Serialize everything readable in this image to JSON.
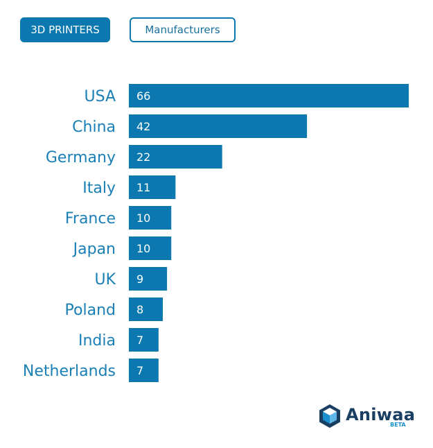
{
  "header": {
    "tag_primary": "3D PRINTERS",
    "tag_secondary": "Manufacturers"
  },
  "chart_data": {
    "type": "bar",
    "orientation": "horizontal",
    "title": "",
    "xlabel": "",
    "ylabel": "",
    "categories": [
      "USA",
      "China",
      "Germany",
      "Italy",
      "France",
      "Japan",
      "UK",
      "Poland",
      "India",
      "Netherlands"
    ],
    "values": [
      66,
      42,
      22,
      11,
      10,
      10,
      9,
      8,
      7,
      7
    ],
    "xlim": [
      0,
      66
    ],
    "grid": false,
    "legend": "none",
    "bar_color": "#0b78b0"
  },
  "brand": {
    "name": "Aniwaa",
    "badge": "BETA",
    "icon": "aniwaa-cube-icon",
    "colors": {
      "dark": "#1b3e63",
      "light": "#1a8fd0"
    }
  }
}
